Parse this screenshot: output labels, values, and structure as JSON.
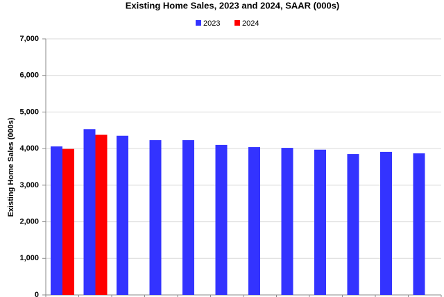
{
  "chart_data": {
    "type": "bar",
    "title": "Existing Home Sales,  2023 and 2024, SAAR (000s)",
    "y_label": "Existing Home Sales (000s)",
    "categories": [
      null,
      null,
      null,
      null,
      null,
      null,
      null,
      null,
      null,
      null,
      null,
      null
    ],
    "series": [
      {
        "name": "2023",
        "color": "#3333ff",
        "values": [
          4060,
          4530,
          4350,
          4230,
          4230,
          4100,
          4040,
          4020,
          3970,
          3850,
          3910,
          3870
        ]
      },
      {
        "name": "2024",
        "color": "#ff0000",
        "values": [
          3990,
          4380,
          null,
          null,
          null,
          null,
          null,
          null,
          null,
          null,
          null,
          null
        ]
      }
    ],
    "ylim": [
      0,
      7000
    ],
    "yticks": [
      0,
      {
        "value": 1000,
        "label": "1,000"
      },
      {
        "value": 2000,
        "label": "2,000"
      },
      {
        "value": 3000,
        "label": "3,000"
      },
      {
        "value": 4000,
        "label": "4,000"
      },
      {
        "value": 5000,
        "label": "5,000"
      },
      {
        "value": 6000,
        "label": "6,000"
      },
      {
        "value": 7000,
        "label": "7,000"
      }
    ],
    "grid": true,
    "legend": "top"
  }
}
